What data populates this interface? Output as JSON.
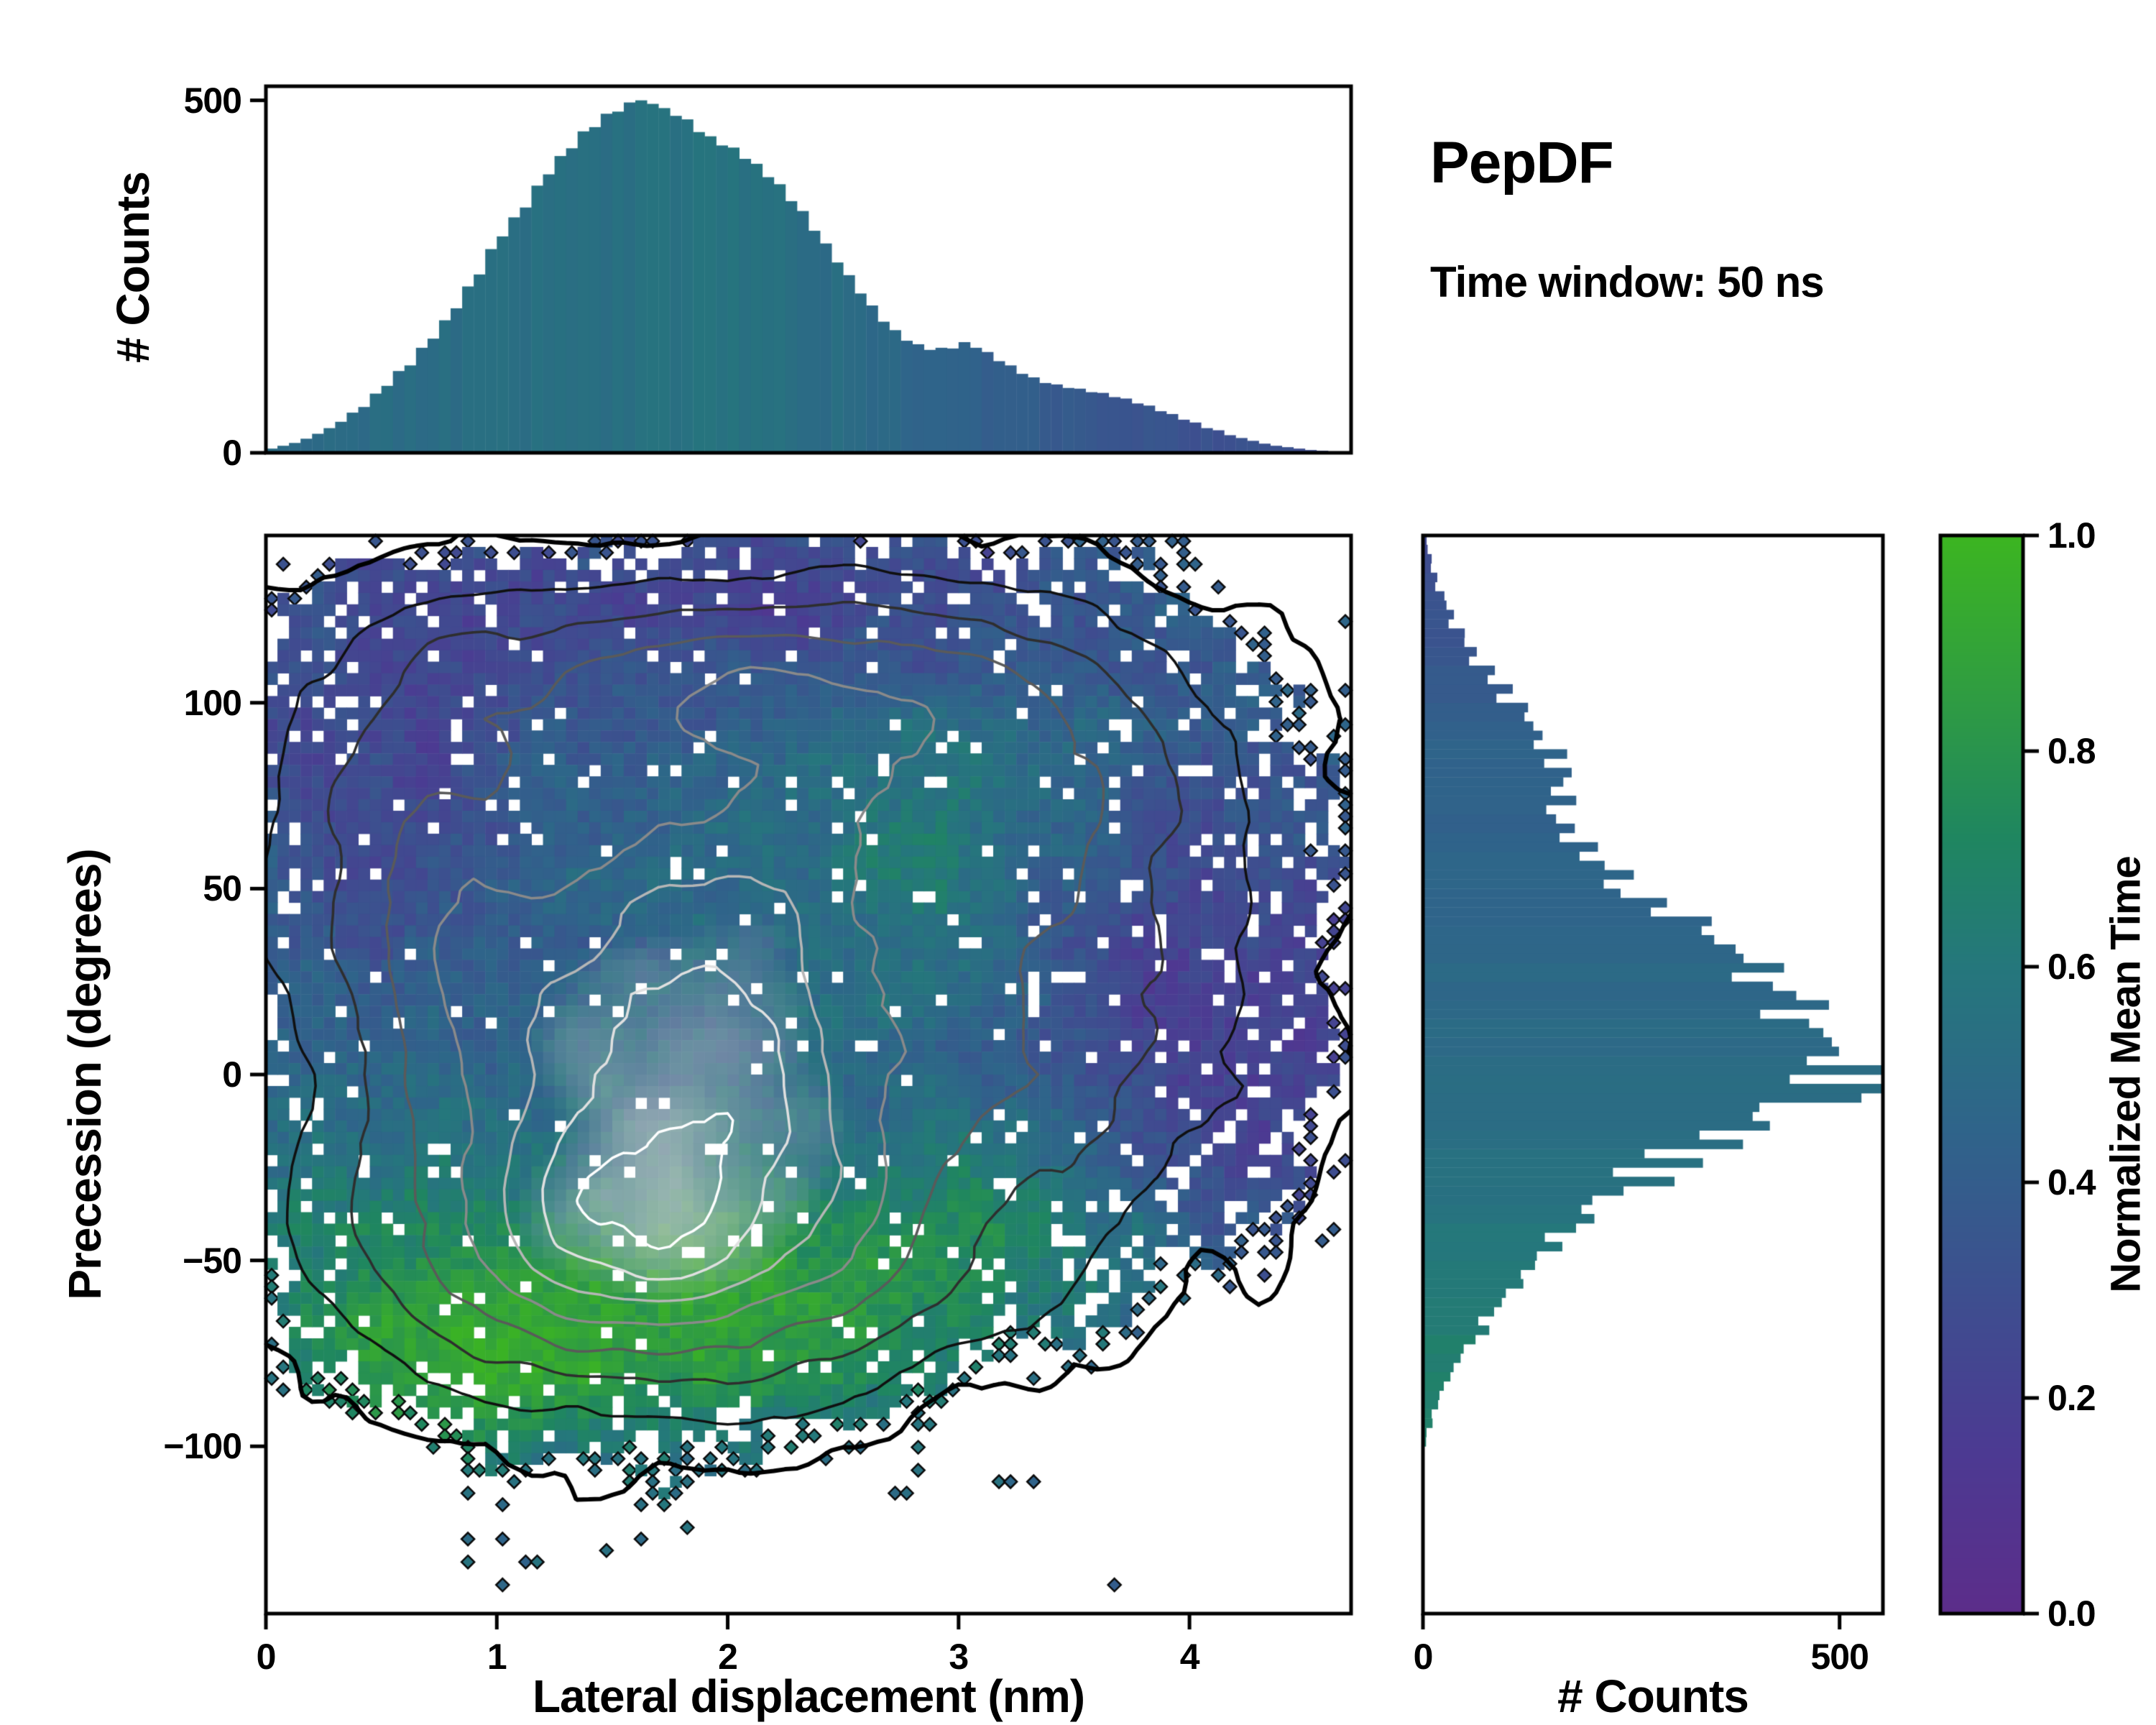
{
  "annotations": {
    "title": "PepDF",
    "subtitle": "Time window: 50 ns"
  },
  "colors": {
    "background": "#ffffff",
    "axis": "#000000",
    "colormap_stops": [
      [
        0.0,
        "#5c2d8a"
      ],
      [
        0.15,
        "#4c3a92"
      ],
      [
        0.3,
        "#3d4f8f"
      ],
      [
        0.45,
        "#2f648a"
      ],
      [
        0.6,
        "#25777c"
      ],
      [
        0.72,
        "#1f8660"
      ],
      [
        0.85,
        "#2f9c42"
      ],
      [
        1.0,
        "#3cb521"
      ]
    ]
  },
  "chart_data": [
    {
      "id": "top_histogram",
      "type": "bar",
      "orientation": "vertical",
      "title": "",
      "xlabel": "",
      "ylabel": "# Counts",
      "x_range": [
        0,
        4.7
      ],
      "y_range": [
        0,
        520
      ],
      "y_ticks": [
        0,
        500
      ],
      "grid": false,
      "bin_start": 0,
      "bin_width": 0.05,
      "values": [
        6,
        10,
        14,
        20,
        27,
        35,
        44,
        57,
        65,
        84,
        95,
        116,
        124,
        149,
        162,
        188,
        205,
        236,
        253,
        289,
        307,
        334,
        348,
        379,
        395,
        421,
        432,
        456,
        462,
        481,
        484,
        497,
        500,
        495,
        489,
        478,
        473,
        455,
        449,
        436,
        433,
        417,
        410,
        391,
        381,
        357,
        343,
        315,
        297,
        270,
        252,
        226,
        209,
        186,
        174,
        159,
        154,
        146,
        149,
        148,
        157,
        149,
        143,
        130,
        124,
        112,
        107,
        99,
        97,
        92,
        91,
        86,
        85,
        79,
        77,
        70,
        67,
        59,
        55,
        47,
        43,
        35,
        32,
        25,
        21,
        17,
        13,
        10,
        8,
        6,
        4,
        3,
        2,
        1
      ],
      "color_profile": [
        [
          0,
          0.5
        ],
        [
          1,
          0.52
        ],
        [
          2,
          0.56
        ],
        [
          2.6,
          0.5
        ],
        [
          3,
          0.44
        ],
        [
          3.5,
          0.37
        ],
        [
          4,
          0.32
        ],
        [
          4.7,
          0.3
        ]
      ]
    },
    {
      "id": "joint_heatmap",
      "type": "heatmap",
      "xlabel": "Lateral displacement (nm)",
      "ylabel": "Precession (degrees)",
      "x_range": [
        0,
        4.7
      ],
      "y_range": [
        -145,
        145
      ],
      "x_ticks": [
        0,
        1,
        2,
        3,
        4
      ],
      "y_ticks": [
        -100,
        -50,
        0,
        50,
        100
      ],
      "color_label": "Normalized Mean Time",
      "color_range": [
        0,
        1
      ],
      "grid": {
        "nx": 94,
        "ny": 94
      },
      "base_color_value": 0.48,
      "density_blobs": [
        {
          "x": 1.8,
          "y": 5,
          "sx": 0.85,
          "sy": 50,
          "a": 1.0
        },
        {
          "x": 2.9,
          "y": 85,
          "sx": 0.95,
          "sy": 33,
          "a": 0.45
        },
        {
          "x": 1.6,
          "y": -50,
          "sx": 0.85,
          "sy": 24,
          "a": 0.5
        },
        {
          "x": 3.6,
          "y": 15,
          "sx": 0.65,
          "sy": 45,
          "a": 0.35
        },
        {
          "x": 0.6,
          "y": 60,
          "sx": 0.5,
          "sy": 45,
          "a": 0.35
        },
        {
          "x": 1.9,
          "y": 108,
          "sx": 0.95,
          "sy": 19,
          "a": 0.34
        }
      ],
      "color_blobs": [
        {
          "x": 4.05,
          "y": 10,
          "sx": 0.85,
          "sy": 55,
          "dv": -0.3
        },
        {
          "x": 0.5,
          "y": 85,
          "sx": 0.55,
          "sy": 45,
          "dv": -0.22
        },
        {
          "x": 2.2,
          "y": 130,
          "sx": 1.1,
          "sy": 22,
          "dv": -0.26
        },
        {
          "x": 2.0,
          "y": -62,
          "sx": 0.85,
          "sy": 24,
          "dv": 0.4
        },
        {
          "x": 0.95,
          "y": -80,
          "sx": 0.45,
          "sy": 18,
          "dv": 0.28
        },
        {
          "x": 2.9,
          "y": 40,
          "sx": 0.4,
          "sy": 28,
          "dv": 0.18
        },
        {
          "x": 3.3,
          "y": -38,
          "sx": 0.5,
          "sy": 25,
          "dv": 0.24
        },
        {
          "x": 0.4,
          "y": -55,
          "sx": 0.45,
          "sy": 25,
          "dv": 0.16
        },
        {
          "x": 3.0,
          "y": 80,
          "sx": 0.6,
          "sy": 25,
          "dv": 0.1
        }
      ],
      "contour_levels": [
        {
          "v": 0.1,
          "color": "#000000",
          "lw": 6
        },
        {
          "v": 0.24,
          "color": "#101010",
          "lw": 3.5
        },
        {
          "v": 0.4,
          "color": "#2e2e2e",
          "lw": 3.5
        },
        {
          "v": 0.56,
          "color": "#5a5a5a",
          "lw": 3.5
        },
        {
          "v": 0.72,
          "color": "#8a8a8a",
          "lw": 3.5
        },
        {
          "v": 0.86,
          "color": "#b6b6b6",
          "lw": 3.5
        },
        {
          "v": 0.98,
          "color": "#e0e0e0",
          "lw": 3.5
        },
        {
          "v": 1.08,
          "color": "#ffffff",
          "lw": 3.5
        }
      ]
    },
    {
      "id": "right_histogram",
      "type": "bar",
      "orientation": "horizontal",
      "xlabel": "# Counts",
      "ylabel": "",
      "x_range": [
        0,
        552
      ],
      "x_ticks": [
        0,
        500
      ],
      "y_range": [
        -145,
        145
      ],
      "grid": false,
      "bin_start": -145,
      "bin_width": 5,
      "values": [
        0,
        0,
        0,
        0,
        0,
        0,
        0,
        0,
        0,
        4,
        11,
        19,
        29,
        41,
        56,
        73,
        90,
        110,
        126,
        152,
        165,
        198,
        222,
        265,
        301,
        358,
        406,
        465,
        502,
        522,
        495,
        472,
        446,
        434,
        402,
        380,
        342,
        310,
        265,
        235,
        203,
        187,
        171,
        166,
        161,
        162,
        153,
        138,
        124,
        98,
        82,
        60,
        50,
        34,
        27,
        16,
        10,
        5
      ],
      "color_profile": [
        [
          -95,
          0.68
        ],
        [
          -70,
          0.65
        ],
        [
          -50,
          0.61
        ],
        [
          -30,
          0.56
        ],
        [
          -10,
          0.52
        ],
        [
          10,
          0.5
        ],
        [
          30,
          0.48
        ],
        [
          50,
          0.46
        ],
        [
          70,
          0.44
        ],
        [
          90,
          0.43
        ],
        [
          110,
          0.36
        ],
        [
          145,
          0.27
        ]
      ]
    },
    {
      "id": "colorbar",
      "type": "colorbar",
      "label": "Normalized Mean Time",
      "range": [
        0,
        1
      ],
      "ticks": [
        "0.0",
        "0.2",
        "0.4",
        "0.6",
        "0.8",
        "1.0"
      ]
    }
  ]
}
